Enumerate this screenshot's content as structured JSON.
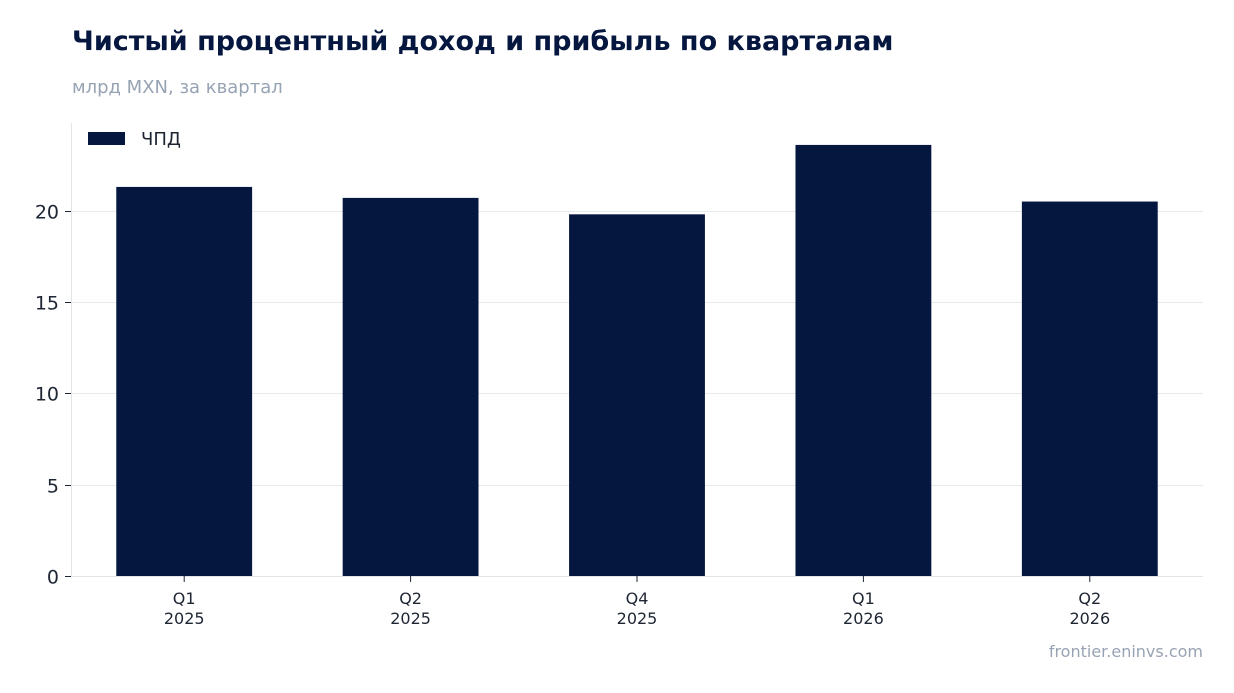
{
  "header": {
    "title": "Чистый процентный доход и прибыль по кварталам",
    "subtitle": "млрд MXN, за квартал"
  },
  "footer": {
    "source": "frontier.eninvs.com"
  },
  "chart_data": {
    "type": "bar",
    "categories": [
      [
        "Q1",
        "2025"
      ],
      [
        "Q2",
        "2025"
      ],
      [
        "Q4",
        "2025"
      ],
      [
        "Q1",
        "2026"
      ],
      [
        "Q2",
        "2026"
      ]
    ],
    "series": [
      {
        "name": "ЧПД",
        "color": "#05163f",
        "values": [
          21.3,
          20.7,
          19.8,
          23.6,
          20.5
        ]
      }
    ],
    "yticks": [
      0,
      5,
      10,
      15,
      20
    ],
    "ylim": [
      0,
      24.8
    ],
    "grid": true,
    "legend": "top-left"
  }
}
